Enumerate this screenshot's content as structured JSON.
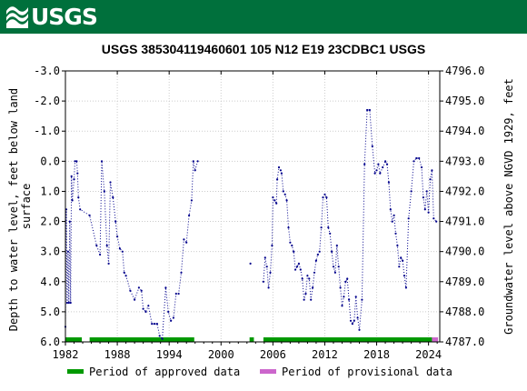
{
  "header": {
    "logo_text": "USGS"
  },
  "chart_data": {
    "type": "scatter",
    "title": "USGS 385304119460601 105  N12 E19 23CDBC1    USGS",
    "ylabel_left": "Depth to water level, feet below land surface",
    "ylabel_left_lines": [
      "Depth to water level, feet below land",
      "surface"
    ],
    "ylabel_right": "Groundwater level above NGVD 1929, feet",
    "xlim": [
      1982,
      2025.3
    ],
    "ylim_left": [
      6.0,
      -3.0
    ],
    "ylim_right": [
      4787.0,
      4796.0
    ],
    "x_ticks": [
      1982,
      1988,
      1994,
      2000,
      2006,
      2012,
      2018,
      2024
    ],
    "x_tick_labels": [
      "1982",
      "1988",
      "1994",
      "2000",
      "2006",
      "2012",
      "2018",
      "2024"
    ],
    "y_ticks_left": [
      -3,
      -2,
      -1,
      0,
      1,
      2,
      3,
      4,
      5,
      6
    ],
    "y_tick_labels_left": [
      "-3.0",
      "-2.0",
      "-1.0",
      "0.0",
      "1.0",
      "2.0",
      "3.0",
      "4.0",
      "5.0",
      "6.0"
    ],
    "y_ticks_right": [
      4796,
      4795,
      4794,
      4793,
      4792,
      4791,
      4790,
      4789,
      4788,
      4787
    ],
    "y_tick_labels_right": [
      "4796.0",
      "4795.0",
      "4794.0",
      "4793.0",
      "4792.0",
      "4791.0",
      "4790.0",
      "4789.0",
      "4788.0",
      "4787.0"
    ],
    "series": [
      {
        "name": "Depth to water level",
        "color": "#00008b",
        "segments": [
          [
            [
              1982.0,
              5.5
            ],
            [
              1982.1,
              1.6
            ],
            [
              1982.2,
              4.7
            ],
            [
              1982.3,
              3.0
            ],
            [
              1982.4,
              4.7
            ],
            [
              1982.5,
              2.0
            ],
            [
              1982.6,
              4.7
            ],
            [
              1982.7,
              0.5
            ],
            [
              1982.8,
              1.3
            ],
            [
              1983.0,
              0.6
            ],
            [
              1983.1,
              0.0
            ],
            [
              1983.3,
              0.0
            ],
            [
              1983.4,
              0.4
            ],
            [
              1983.5,
              1.2
            ],
            [
              1983.7,
              1.6
            ],
            [
              1984.8,
              1.8
            ],
            [
              1985.6,
              2.8
            ],
            [
              1986.0,
              3.1
            ],
            [
              1986.2,
              0.0
            ],
            [
              1986.5,
              1.0
            ],
            [
              1986.8,
              2.8
            ],
            [
              1987.0,
              3.4
            ],
            [
              1987.2,
              0.7
            ],
            [
              1987.5,
              1.2
            ],
            [
              1987.8,
              2.0
            ],
            [
              1988.0,
              2.5
            ],
            [
              1988.3,
              2.9
            ],
            [
              1988.6,
              3.0
            ],
            [
              1988.8,
              3.7
            ],
            [
              1989.0,
              3.8
            ],
            [
              1989.5,
              4.3
            ],
            [
              1990.0,
              4.6
            ],
            [
              1990.5,
              4.2
            ],
            [
              1990.8,
              4.3
            ],
            [
              1991.0,
              4.9
            ],
            [
              1991.3,
              5.0
            ],
            [
              1991.6,
              4.8
            ],
            [
              1992.0,
              5.4
            ],
            [
              1992.3,
              5.4
            ],
            [
              1992.6,
              5.4
            ],
            [
              1992.9,
              5.8
            ],
            [
              1993.2,
              5.9
            ],
            [
              1993.6,
              4.2
            ],
            [
              1993.9,
              5.0
            ],
            [
              1994.2,
              5.3
            ],
            [
              1994.5,
              5.2
            ],
            [
              1994.8,
              4.4
            ],
            [
              1995.1,
              4.4
            ],
            [
              1995.4,
              3.7
            ],
            [
              1995.7,
              2.6
            ],
            [
              1996.0,
              2.7
            ],
            [
              1996.3,
              1.8
            ],
            [
              1996.6,
              1.3
            ],
            [
              1996.8,
              0.0
            ],
            [
              1997.0,
              0.3
            ],
            [
              1997.3,
              0.0
            ]
          ],
          [
            [
              2003.4,
              3.4
            ]
          ],
          [
            [
              2004.9,
              4.0
            ],
            [
              2005.1,
              3.2
            ],
            [
              2005.3,
              3.5
            ],
            [
              2005.5,
              4.2
            ],
            [
              2005.7,
              3.7
            ],
            [
              2005.9,
              2.8
            ],
            [
              2006.0,
              1.2
            ],
            [
              2006.2,
              1.3
            ],
            [
              2006.4,
              1.4
            ],
            [
              2006.5,
              0.6
            ],
            [
              2006.7,
              0.2
            ],
            [
              2006.9,
              0.3
            ],
            [
              2007.0,
              0.4
            ],
            [
              2007.2,
              1.0
            ],
            [
              2007.4,
              1.1
            ],
            [
              2007.6,
              1.3
            ],
            [
              2007.8,
              2.2
            ],
            [
              2008.0,
              2.7
            ],
            [
              2008.2,
              2.8
            ],
            [
              2008.4,
              3.0
            ],
            [
              2008.6,
              3.6
            ],
            [
              2008.8,
              3.5
            ],
            [
              2009.0,
              3.4
            ],
            [
              2009.2,
              3.6
            ],
            [
              2009.4,
              3.9
            ],
            [
              2009.6,
              4.6
            ],
            [
              2009.8,
              4.4
            ],
            [
              2010.0,
              3.8
            ],
            [
              2010.2,
              3.9
            ],
            [
              2010.4,
              4.6
            ],
            [
              2010.6,
              4.2
            ],
            [
              2010.8,
              3.7
            ],
            [
              2011.0,
              3.3
            ],
            [
              2011.2,
              3.1
            ],
            [
              2011.4,
              3.0
            ],
            [
              2011.6,
              2.2
            ],
            [
              2011.8,
              1.2
            ],
            [
              2012.0,
              1.1
            ],
            [
              2012.2,
              1.2
            ],
            [
              2012.4,
              2.2
            ],
            [
              2012.6,
              2.4
            ],
            [
              2012.8,
              3.0
            ],
            [
              2013.0,
              3.5
            ],
            [
              2013.2,
              3.7
            ],
            [
              2013.4,
              2.8
            ],
            [
              2013.6,
              3.5
            ],
            [
              2013.8,
              4.2
            ],
            [
              2014.0,
              4.8
            ],
            [
              2014.2,
              4.5
            ],
            [
              2014.4,
              4.0
            ],
            [
              2014.6,
              3.9
            ],
            [
              2014.8,
              4.6
            ],
            [
              2015.0,
              5.3
            ],
            [
              2015.2,
              5.4
            ],
            [
              2015.4,
              5.3
            ],
            [
              2015.6,
              4.5
            ],
            [
              2015.8,
              5.2
            ],
            [
              2016.0,
              5.6
            ],
            [
              2016.3,
              4.6
            ],
            [
              2016.6,
              0.1
            ],
            [
              2016.9,
              -1.7
            ],
            [
              2017.2,
              -1.7
            ],
            [
              2017.5,
              -0.5
            ],
            [
              2017.8,
              0.4
            ],
            [
              2018.0,
              0.3
            ],
            [
              2018.2,
              0.1
            ],
            [
              2018.4,
              0.4
            ],
            [
              2018.7,
              0.2
            ],
            [
              2019.0,
              0.0
            ],
            [
              2019.2,
              0.1
            ],
            [
              2019.4,
              0.7
            ],
            [
              2019.6,
              1.6
            ],
            [
              2019.8,
              2.0
            ],
            [
              2020.0,
              1.8
            ],
            [
              2020.2,
              2.4
            ],
            [
              2020.4,
              2.8
            ],
            [
              2020.6,
              3.5
            ],
            [
              2020.8,
              3.2
            ],
            [
              2021.0,
              3.3
            ],
            [
              2021.2,
              3.8
            ],
            [
              2021.4,
              4.2
            ],
            [
              2021.7,
              1.9
            ],
            [
              2022.0,
              1.0
            ],
            [
              2022.3,
              0.0
            ],
            [
              2022.6,
              -0.1
            ],
            [
              2022.9,
              -0.1
            ],
            [
              2023.2,
              0.2
            ],
            [
              2023.4,
              1.2
            ],
            [
              2023.6,
              1.6
            ],
            [
              2023.8,
              1.0
            ],
            [
              2024.0,
              1.7
            ],
            [
              2024.2,
              0.6
            ],
            [
              2024.4,
              0.3
            ],
            [
              2024.6,
              1.9
            ],
            [
              2024.9,
              2.0
            ]
          ]
        ]
      }
    ],
    "periods": [
      {
        "name": "Period of approved data",
        "color": "#009900",
        "ranges": [
          [
            1982.0,
            1983.9
          ],
          [
            1984.8,
            1996.9
          ],
          [
            2003.3,
            2003.8
          ],
          [
            2004.9,
            2024.4
          ]
        ]
      },
      {
        "name": "Period of provisional data",
        "color": "#cc66cc",
        "ranges": [
          [
            2024.4,
            2025.1
          ]
        ]
      }
    ],
    "legend": [
      {
        "label": "Period of approved data",
        "color": "#009900"
      },
      {
        "label": "Period of provisional data",
        "color": "#cc66cc"
      }
    ],
    "legend_position": "bottom",
    "grid": true
  }
}
